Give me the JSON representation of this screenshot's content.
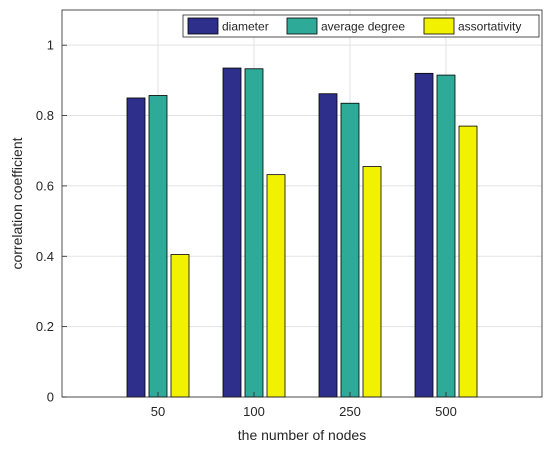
{
  "chart_data": {
    "type": "bar",
    "categories": [
      "50",
      "100",
      "250",
      "500"
    ],
    "series": [
      {
        "name": "diameter",
        "color": "#2e2e8b",
        "values": [
          0.85,
          0.935,
          0.862,
          0.92
        ]
      },
      {
        "name": "average degree",
        "color": "#2eaa98",
        "values": [
          0.857,
          0.933,
          0.835,
          0.915
        ]
      },
      {
        "name": "assortativity",
        "color": "#f2f200",
        "values": [
          0.405,
          0.632,
          0.655,
          0.77
        ]
      }
    ],
    "xlabel": "the number of nodes",
    "ylabel": "correlation coefficient",
    "ylim": [
      0,
      1.1
    ],
    "yticks": [
      "0",
      "0.2",
      "0.4",
      "0.6",
      "0.8",
      "1"
    ],
    "grid": true,
    "legend_position": "top-right",
    "legend_orientation": "horizontal"
  }
}
